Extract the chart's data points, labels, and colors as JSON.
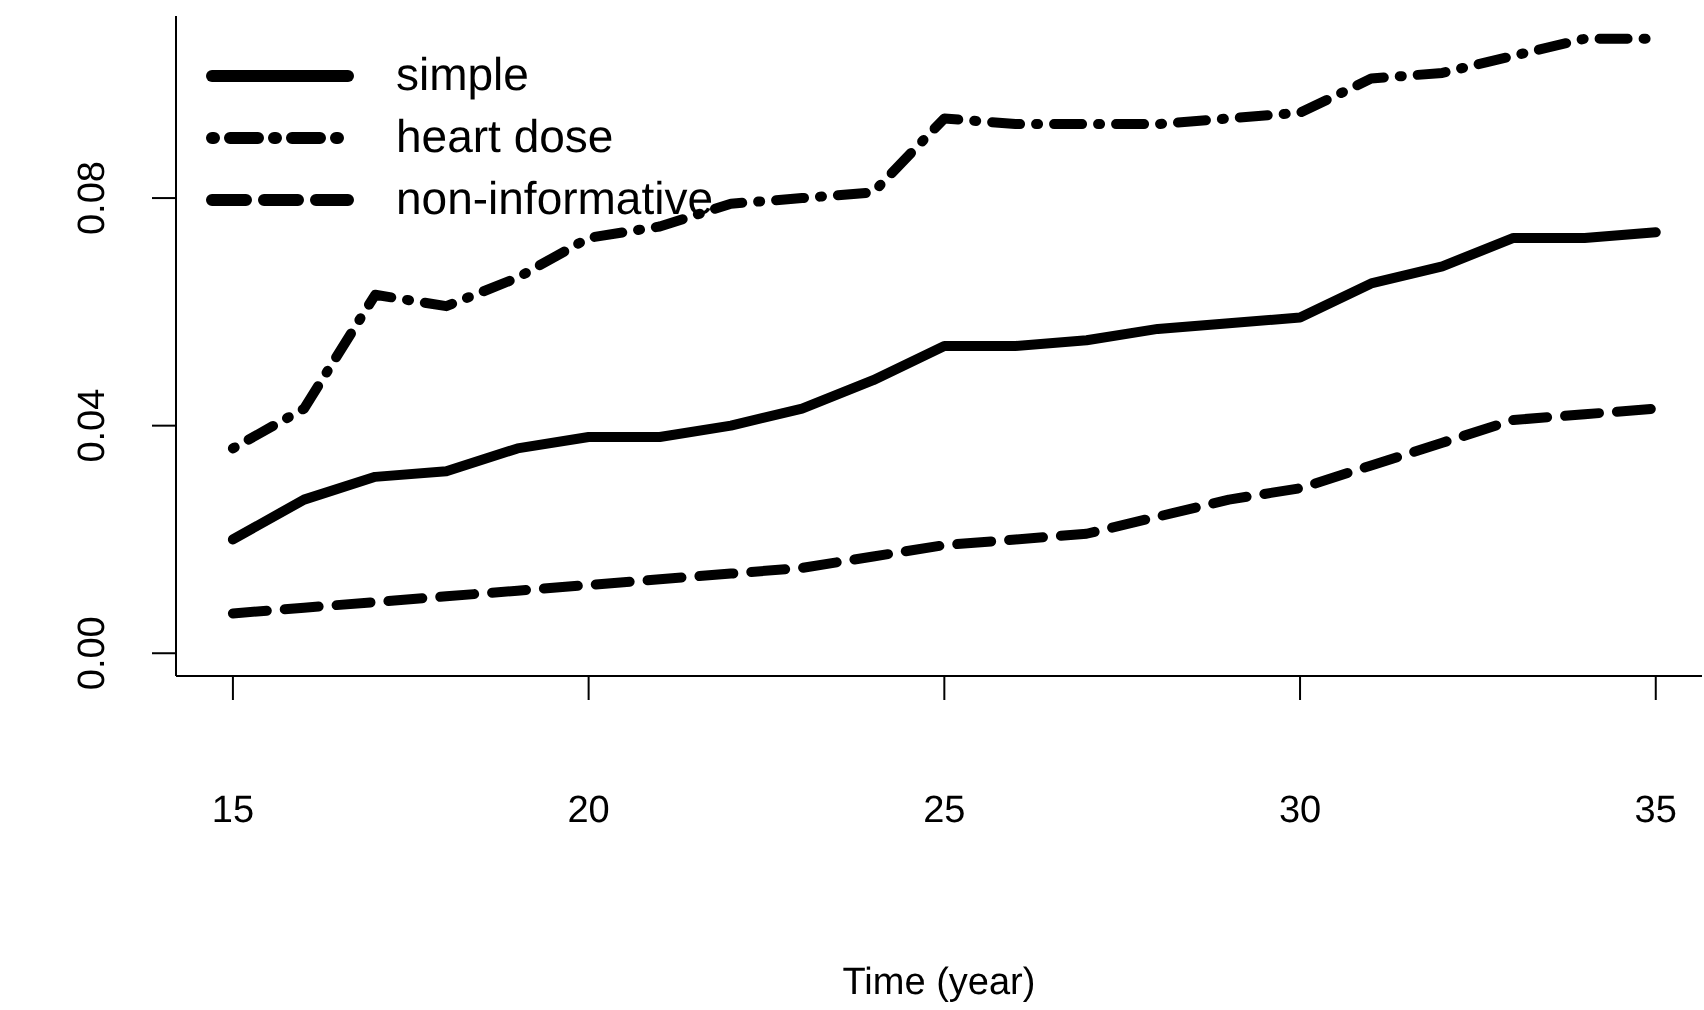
{
  "chart_data": {
    "type": "line",
    "xlabel": "Time (year)",
    "x": [
      15,
      16,
      17,
      18,
      19,
      20,
      21,
      22,
      23,
      24,
      25,
      26,
      27,
      28,
      29,
      30,
      31,
      32,
      33,
      34,
      35
    ],
    "series": [
      {
        "name": "simple",
        "color": "#000000",
        "line_style": "solid",
        "values": [
          0.02,
          0.027,
          0.031,
          0.032,
          0.036,
          0.038,
          0.038,
          0.04,
          0.043,
          0.048,
          0.054,
          0.054,
          0.055,
          0.057,
          0.058,
          0.059,
          0.065,
          0.068,
          0.073,
          0.073,
          0.074
        ]
      },
      {
        "name": "heart dose",
        "color": "#000000",
        "line_style": "dotted",
        "values": [
          0.036,
          0.043,
          0.063,
          0.061,
          0.066,
          0.073,
          0.075,
          0.079,
          0.08,
          0.081,
          0.094,
          0.093,
          0.093,
          0.093,
          0.094,
          0.095,
          0.101,
          0.102,
          0.105,
          0.108,
          0.108
        ]
      },
      {
        "name": "non-informative",
        "color": "#000000",
        "line_style": "dashed",
        "values": [
          0.007,
          0.008,
          0.009,
          0.01,
          0.011,
          0.012,
          0.013,
          0.014,
          0.015,
          0.017,
          0.019,
          0.02,
          0.021,
          0.024,
          0.027,
          0.029,
          0.033,
          0.037,
          0.041,
          0.042,
          0.043
        ]
      }
    ],
    "xlim": [
      14.2,
      35.65
    ],
    "xticks": [
      15,
      20,
      25,
      30,
      35
    ],
    "ylim": [
      -0.004,
      0.112
    ],
    "yticks": [
      {
        "value": 0,
        "label": "0.00"
      },
      {
        "value": 0.04,
        "label": "0.04"
      },
      {
        "value": 0.08,
        "label": "0.08"
      }
    ],
    "grid": false,
    "legend": "top left",
    "marker": "none"
  }
}
